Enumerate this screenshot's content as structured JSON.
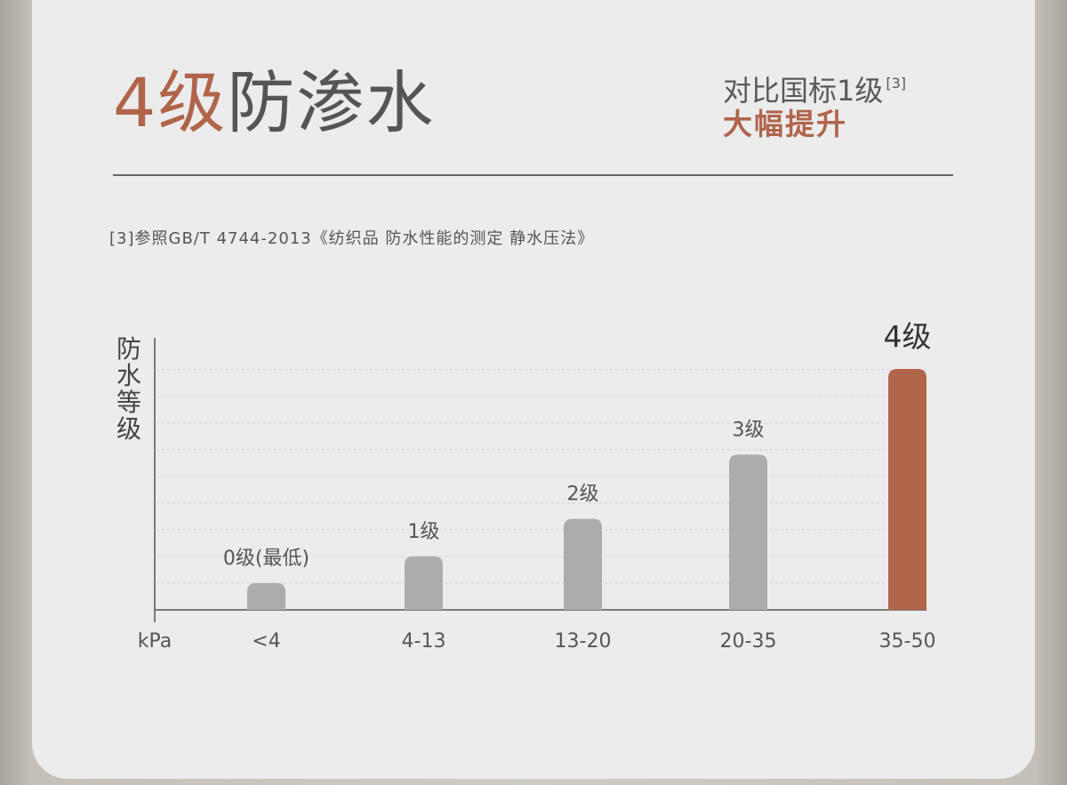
{
  "headline": {
    "accent": "4级",
    "rest": "防渗水"
  },
  "compare": {
    "text": "对比国标1级",
    "ref": "[3]",
    "boost": "大幅提升"
  },
  "footnote": "[3]参照GB/T 4744-2013《纺织品 防水性能的测定 静水压法》",
  "chart_data": {
    "type": "bar",
    "title": "",
    "ylabel": "防水等级",
    "xlabel": "kPa",
    "categories": [
      "<4",
      "4-13",
      "13-20",
      "20-35",
      "35-50"
    ],
    "bar_labels": [
      "0级(最低)",
      "1级",
      "2级",
      "3级",
      "4级"
    ],
    "values": [
      0.5,
      1.0,
      1.7,
      2.9,
      4.5
    ],
    "ylim": [
      0,
      4.5
    ],
    "grid": true,
    "highlight_index": 4
  },
  "colors": {
    "accent": "#b0654b",
    "bar": "#acacaa",
    "grid": "#cfcfcf",
    "axis": "#555555"
  }
}
